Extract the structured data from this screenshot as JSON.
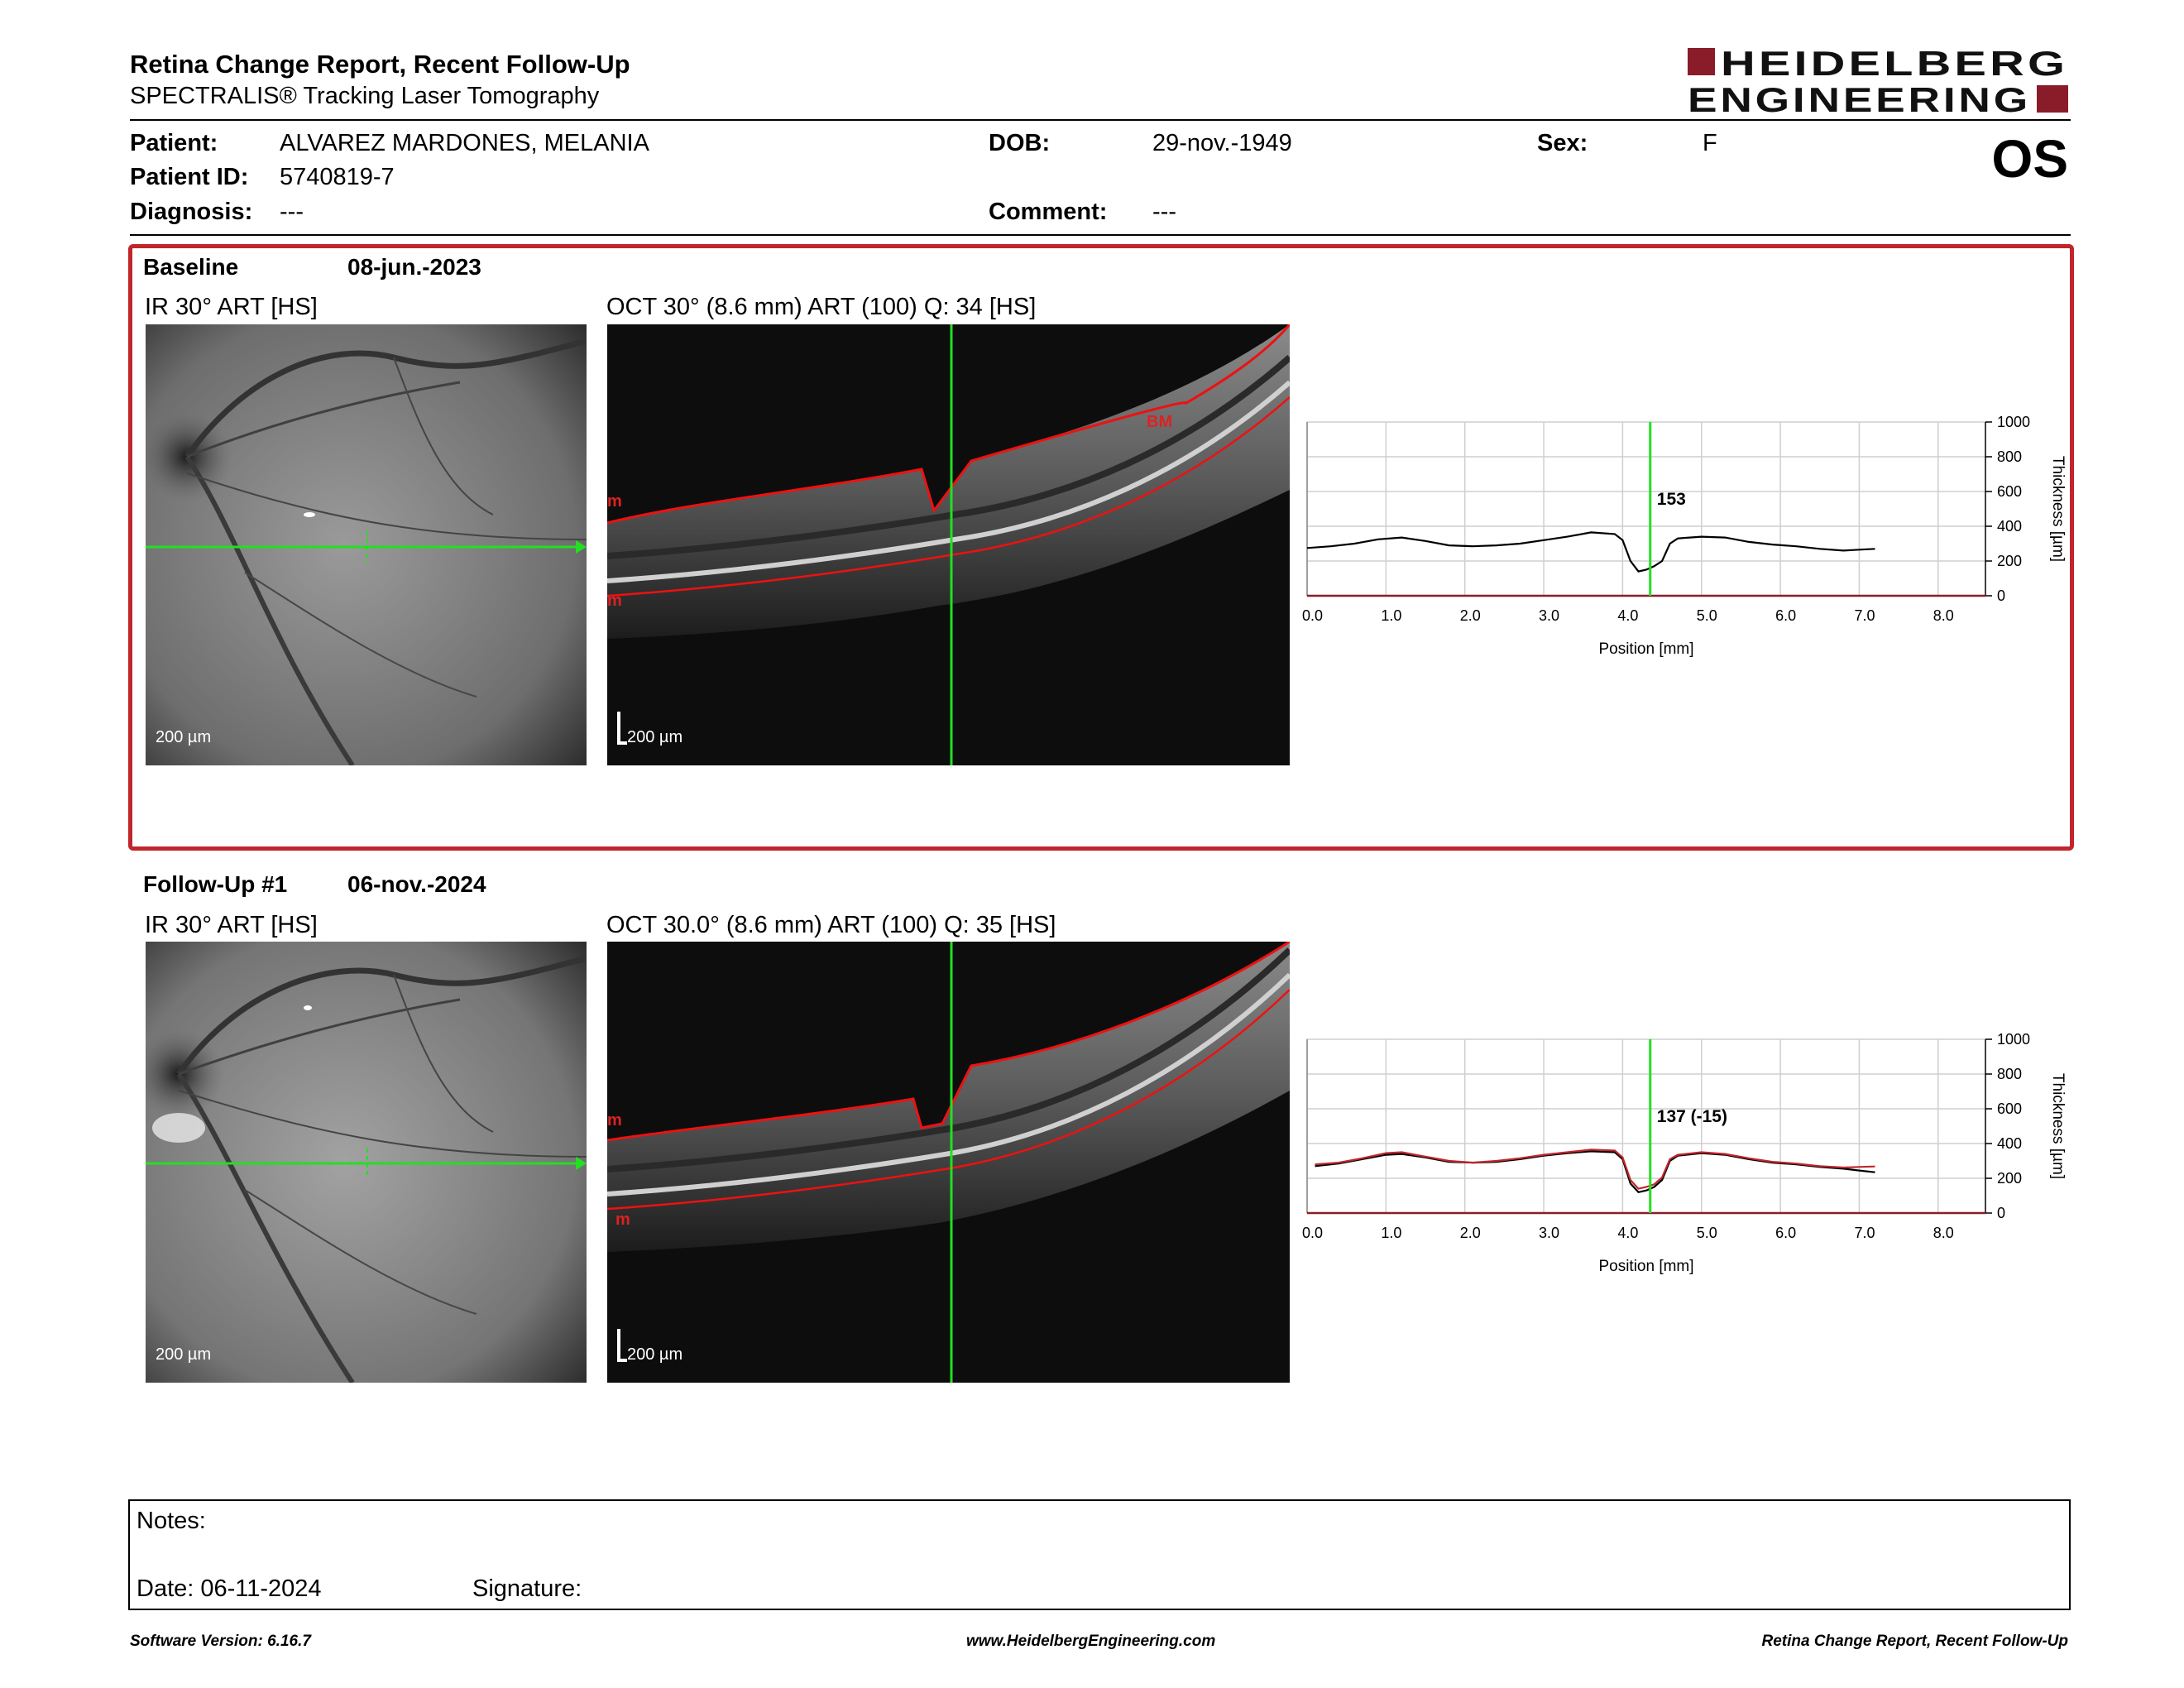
{
  "header": {
    "title": "Retina Change Report, Recent Follow-Up",
    "subtitle": "SPECTRALIS® Tracking Laser Tomography",
    "logo_line1": "HEIDELBERG",
    "logo_line2": "ENGINEERING",
    "eye": "OS"
  },
  "patient": {
    "patient_label": "Patient:",
    "patient_value": "ALVAREZ MARDONES, MELANIA",
    "id_label": "Patient ID:",
    "id_value": "5740819-7",
    "diagnosis_label": "Diagnosis:",
    "diagnosis_value": "---",
    "dob_label": "DOB:",
    "dob_value": "29-nov.-1949",
    "comment_label": "Comment:",
    "comment_value": "---",
    "sex_label": "Sex:",
    "sex_value": "F"
  },
  "baseline": {
    "label": "Baseline",
    "date": "08-jun.-2023",
    "ir_title": "IR 30° ART [HS]",
    "oct_title": "OCT 30° (8.6 mm) ART (100) Q: 34 [HS]",
    "ir_scale": "200 µm",
    "oct_scale": "200 µm",
    "oct_layer_top": "m",
    "oct_layer_bottom": "m",
    "oct_layer_bm": "BM"
  },
  "followup": {
    "label": "Follow-Up #1",
    "date": "06-nov.-2024",
    "ir_title": "IR 30° ART [HS]",
    "oct_title": "OCT 30.0° (8.6 mm) ART (100) Q: 35 [HS]",
    "ir_scale": "200 µm",
    "oct_scale": "200 µm",
    "oct_layer_top": "m",
    "oct_layer_bottom": "m"
  },
  "chart_data": [
    {
      "type": "line",
      "xlabel": "Position [mm]",
      "ylabel": "Thickness [µm]",
      "xlim": [
        0,
        8.6
      ],
      "ylim": [
        0,
        1000
      ],
      "x_ticks": [
        "0.0",
        "1.0",
        "2.0",
        "3.0",
        "4.0",
        "5.0",
        "6.0",
        "7.0",
        "8.0"
      ],
      "y_ticks": [
        "0",
        "200",
        "400",
        "600",
        "800",
        "1000"
      ],
      "grid": true,
      "marker_x": 4.35,
      "marker_label": "153",
      "series": [
        {
          "color": "#000000",
          "x": [
            0.0,
            0.3,
            0.6,
            0.9,
            1.2,
            1.5,
            1.8,
            2.1,
            2.4,
            2.7,
            3.0,
            3.3,
            3.6,
            3.9,
            4.0,
            4.1,
            4.2,
            4.3,
            4.4,
            4.5,
            4.6,
            4.7,
            5.0,
            5.3,
            5.6,
            5.9,
            6.2,
            6.5,
            6.8,
            7.0,
            7.2
          ],
          "y": [
            275,
            285,
            300,
            325,
            335,
            315,
            290,
            285,
            290,
            300,
            320,
            340,
            365,
            355,
            320,
            200,
            140,
            150,
            170,
            200,
            300,
            330,
            340,
            335,
            310,
            295,
            285,
            270,
            260,
            265,
            270
          ]
        }
      ]
    },
    {
      "type": "line",
      "xlabel": "Position [mm]",
      "ylabel": "Thickness [µm]",
      "xlim": [
        0,
        8.6
      ],
      "ylim": [
        0,
        1000
      ],
      "x_ticks": [
        "0.0",
        "1.0",
        "2.0",
        "3.0",
        "4.0",
        "5.0",
        "6.0",
        "7.0",
        "8.0"
      ],
      "y_ticks": [
        "0",
        "200",
        "400",
        "600",
        "800",
        "1000"
      ],
      "grid": true,
      "marker_x": 4.35,
      "marker_label": "137 (-15)",
      "series": [
        {
          "color": "#000000",
          "x": [
            0.1,
            0.4,
            0.7,
            1.0,
            1.2,
            1.5,
            1.8,
            2.1,
            2.4,
            2.7,
            3.0,
            3.3,
            3.6,
            3.9,
            4.0,
            4.1,
            4.2,
            4.3,
            4.4,
            4.5,
            4.6,
            4.7,
            5.0,
            5.3,
            5.6,
            5.9,
            6.2,
            6.5,
            6.8,
            7.0,
            7.2
          ],
          "y": [
            270,
            285,
            310,
            335,
            340,
            320,
            295,
            290,
            295,
            310,
            330,
            345,
            355,
            350,
            310,
            170,
            120,
            130,
            150,
            190,
            300,
            330,
            345,
            335,
            310,
            290,
            280,
            265,
            255,
            245,
            235
          ]
        },
        {
          "color": "#c0262c",
          "x": [
            0.1,
            0.4,
            0.7,
            1.0,
            1.2,
            1.5,
            1.8,
            2.1,
            2.4,
            2.7,
            3.0,
            3.3,
            3.6,
            3.9,
            4.0,
            4.1,
            4.2,
            4.3,
            4.4,
            4.5,
            4.6,
            4.7,
            5.0,
            5.3,
            5.6,
            5.9,
            6.2,
            6.5,
            6.8,
            7.0,
            7.2
          ],
          "y": [
            280,
            290,
            315,
            345,
            350,
            325,
            300,
            290,
            300,
            315,
            335,
            350,
            365,
            360,
            320,
            190,
            140,
            150,
            165,
            205,
            310,
            335,
            350,
            340,
            315,
            295,
            285,
            270,
            262,
            265,
            268
          ]
        }
      ]
    }
  ],
  "notes": {
    "notes_label": "Notes:",
    "date_label": "Date: 06-11-2024",
    "signature_label": "Signature:"
  },
  "footer": {
    "software": "Software Version: 6.16.7",
    "website": "www.HeidelbergEngineering.com",
    "report_name": "Retina Change Report, Recent Follow-Up"
  }
}
